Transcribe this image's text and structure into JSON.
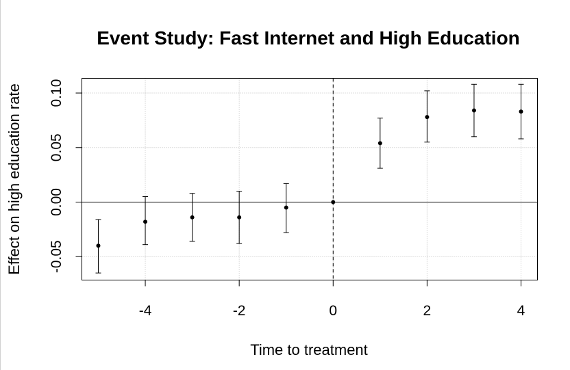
{
  "chart_data": {
    "type": "scatter",
    "title": "Event Study: Fast Internet and High Education",
    "xlabel": "Time to treatment",
    "ylabel": "Effect on high education rate",
    "xlim": [
      -5.35,
      4.35
    ],
    "ylim": [
      -0.0715,
      0.1135
    ],
    "x_ticks": [
      -4,
      -2,
      0,
      2,
      4
    ],
    "x_tick_labels": [
      "-4",
      "-2",
      "0",
      "2",
      "4"
    ],
    "y_ticks": [
      -0.05,
      0.0,
      0.05,
      0.1
    ],
    "y_tick_labels": [
      "-0.05",
      "0.00",
      "0.05",
      "0.10"
    ],
    "grid": true,
    "reference_lines": {
      "horizontal_y": 0,
      "vertical_x": 0
    },
    "point_color": "#000000",
    "grid_color": "#bbbbbb",
    "points": [
      {
        "x": -5,
        "estimate": -0.04,
        "lower": -0.065,
        "upper": -0.016
      },
      {
        "x": -4,
        "estimate": -0.018,
        "lower": -0.039,
        "upper": 0.005
      },
      {
        "x": -3,
        "estimate": -0.014,
        "lower": -0.036,
        "upper": 0.008
      },
      {
        "x": -2,
        "estimate": -0.014,
        "lower": -0.038,
        "upper": 0.01
      },
      {
        "x": -1,
        "estimate": -0.005,
        "lower": -0.028,
        "upper": 0.017
      },
      {
        "x": 0,
        "estimate": 0.0,
        "lower": 0.0,
        "upper": 0.0
      },
      {
        "x": 1,
        "estimate": 0.054,
        "lower": 0.031,
        "upper": 0.077
      },
      {
        "x": 2,
        "estimate": 0.078,
        "lower": 0.055,
        "upper": 0.102
      },
      {
        "x": 3,
        "estimate": 0.084,
        "lower": 0.06,
        "upper": 0.108
      },
      {
        "x": 4,
        "estimate": 0.083,
        "lower": 0.058,
        "upper": 0.108
      }
    ]
  }
}
